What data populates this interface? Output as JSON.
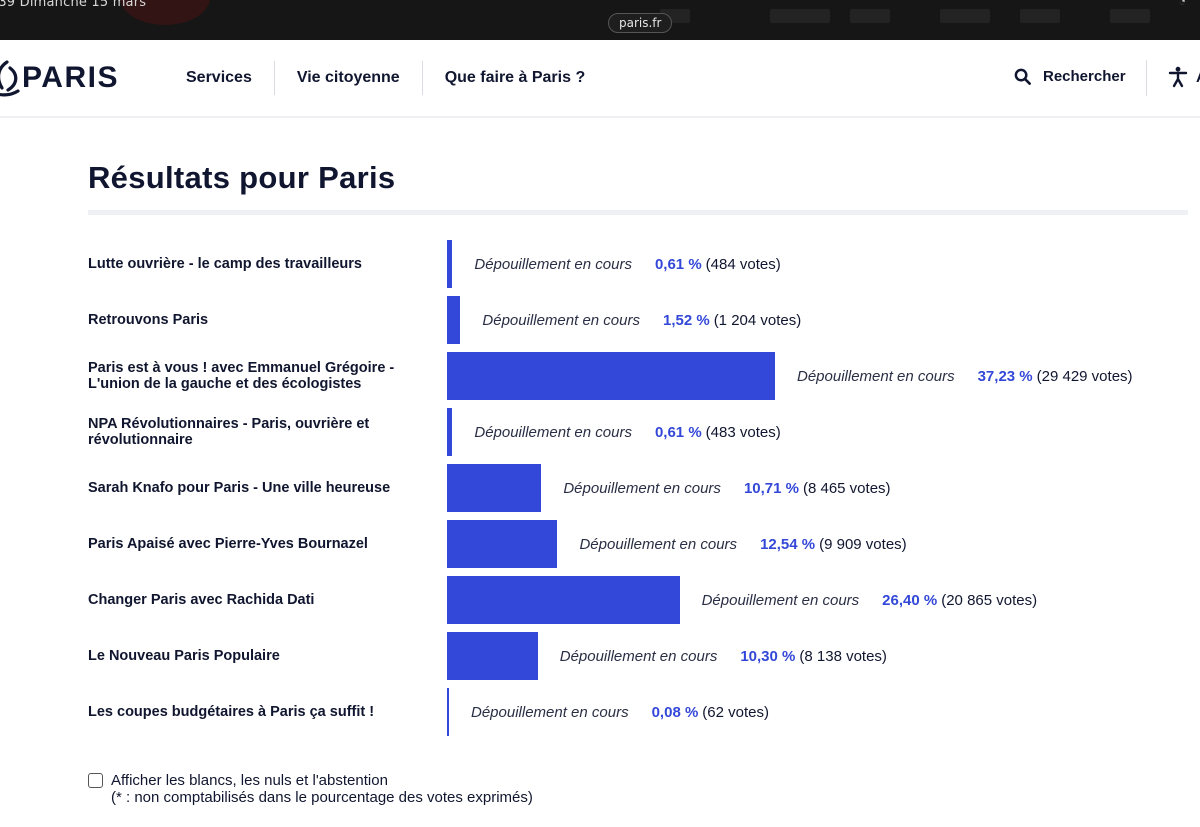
{
  "statusbar": {
    "time": "·39  Dimanche 15 mars",
    "url": "paris.fr"
  },
  "header": {
    "logo_text": "PARIS",
    "nav": [
      "Services",
      "Vie citoyenne",
      "Que faire à Paris ?"
    ],
    "search_label": "Rechercher",
    "accessibility_label": "A"
  },
  "main": {
    "title": "Résultats pour Paris",
    "results": [
      {
        "name": "Lutte ouvrière - le camp des travailleurs",
        "status": "Dépouillement en cours",
        "percent_label": "0,61 %",
        "votes_label": "(484 votes)",
        "percent": 0.61
      },
      {
        "name": "Retrouvons Paris",
        "status": "Dépouillement en cours",
        "percent_label": "1,52 %",
        "votes_label": "(1 204 votes)",
        "percent": 1.52
      },
      {
        "name": "Paris est à vous ! avec Emmanuel Grégoire - L'union de la gauche et des écologistes",
        "status": "Dépouillement en cours",
        "percent_label": "37,23 %",
        "votes_label": "(29 429 votes)",
        "percent": 37.23
      },
      {
        "name": "NPA Révolutionnaires - Paris, ouvrière et révolutionnaire",
        "status": "Dépouillement en cours",
        "percent_label": "0,61 %",
        "votes_label": "(483 votes)",
        "percent": 0.61
      },
      {
        "name": "Sarah Knafo pour Paris - Une ville heureuse",
        "status": "Dépouillement en cours",
        "percent_label": "10,71 %",
        "votes_label": "(8 465 votes)",
        "percent": 10.71
      },
      {
        "name": "Paris Apaisé avec Pierre-Yves Bournazel",
        "status": "Dépouillement en cours",
        "percent_label": "12,54 %",
        "votes_label": "(9 909 votes)",
        "percent": 12.54
      },
      {
        "name": "Changer Paris avec Rachida Dati",
        "status": "Dépouillement en cours",
        "percent_label": "26,40 %",
        "votes_label": "(20 865 votes)",
        "percent": 26.4
      },
      {
        "name": "Le Nouveau Paris Populaire",
        "status": "Dépouillement en cours",
        "percent_label": "10,30 %",
        "votes_label": "(8 138 votes)",
        "percent": 10.3
      },
      {
        "name": "Les coupes budgétaires à Paris ça suffit !",
        "status": "Dépouillement en cours",
        "percent_label": "0,08 %",
        "votes_label": "(62 votes)",
        "percent": 0.08
      }
    ]
  },
  "footer": {
    "checkbox_label": "Afficher les blancs, les nuls et l'abstention",
    "note": "(* : non comptabilisés dans le pourcentage des votes exprimés)",
    "checked": false
  },
  "colors": {
    "bar": "#3348d8",
    "text": "#10162f"
  }
}
